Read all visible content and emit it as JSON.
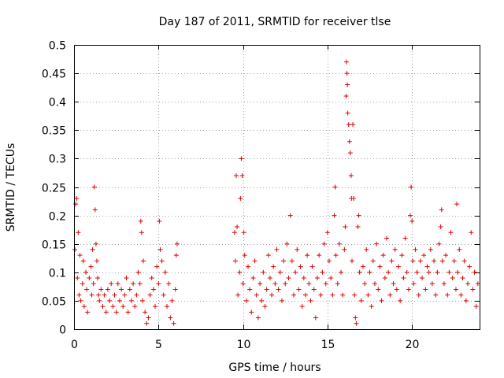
{
  "chart_data": {
    "type": "scatter",
    "title": "Day 187 of 2011, SRMTID for receiver tlse",
    "xlabel": "GPS time / hours",
    "ylabel": "SRMTID / TECUs",
    "xlim": [
      0,
      24
    ],
    "ylim": [
      0,
      0.5
    ],
    "xticks": [
      0,
      5,
      10,
      15,
      20
    ],
    "yticks": [
      0,
      0.05,
      0.1,
      0.15,
      0.2,
      0.25,
      0.3,
      0.35,
      0.4,
      0.45,
      0.5
    ],
    "xtick_labels": [
      "0",
      "5",
      "10",
      "15",
      "20"
    ],
    "ytick_labels": [
      "0",
      "0.05",
      "0.1",
      "0.15",
      "0.2",
      "0.25",
      "0.3",
      "0.35",
      "0.4",
      "0.45",
      "0.5"
    ],
    "grid": true,
    "marker": "+",
    "color": "#e00000",
    "series": [
      {
        "name": "SRMTID",
        "points": [
          [
            0.05,
            0.14
          ],
          [
            0.1,
            0.22
          ],
          [
            0.15,
            0.23
          ],
          [
            0.2,
            0.09
          ],
          [
            0.25,
            0.17
          ],
          [
            0.3,
            0.06
          ],
          [
            0.35,
            0.13
          ],
          [
            0.4,
            0.05
          ],
          [
            0.5,
            0.08
          ],
          [
            0.55,
            0.12
          ],
          [
            0.6,
            0.04
          ],
          [
            0.7,
            0.1
          ],
          [
            0.75,
            0.07
          ],
          [
            0.8,
            0.03
          ],
          [
            0.9,
            0.09
          ],
          [
            1.0,
            0.11
          ],
          [
            1.05,
            0.06
          ],
          [
            1.1,
            0.14
          ],
          [
            1.15,
            0.08
          ],
          [
            1.2,
            0.25
          ],
          [
            1.25,
            0.21
          ],
          [
            1.3,
            0.15
          ],
          [
            1.35,
            0.12
          ],
          [
            1.4,
            0.09
          ],
          [
            1.45,
            0.06
          ],
          [
            1.5,
            0.05
          ],
          [
            1.6,
            0.07
          ],
          [
            1.7,
            0.04
          ],
          [
            1.8,
            0.06
          ],
          [
            1.9,
            0.03
          ],
          [
            2.0,
            0.07
          ],
          [
            2.1,
            0.05
          ],
          [
            2.2,
            0.08
          ],
          [
            2.3,
            0.04
          ],
          [
            2.4,
            0.06
          ],
          [
            2.5,
            0.03
          ],
          [
            2.6,
            0.08
          ],
          [
            2.7,
            0.05
          ],
          [
            2.8,
            0.07
          ],
          [
            2.9,
            0.04
          ],
          [
            3.0,
            0.06
          ],
          [
            3.1,
            0.09
          ],
          [
            3.2,
            0.03
          ],
          [
            3.3,
            0.07
          ],
          [
            3.4,
            0.05
          ],
          [
            3.5,
            0.08
          ],
          [
            3.6,
            0.04
          ],
          [
            3.7,
            0.06
          ],
          [
            3.8,
            0.1
          ],
          [
            3.9,
            0.08
          ],
          [
            3.95,
            0.19
          ],
          [
            4.0,
            0.17
          ],
          [
            4.05,
            0.05
          ],
          [
            4.1,
            0.12
          ],
          [
            4.2,
            0.03
          ],
          [
            4.3,
            0.01
          ],
          [
            4.4,
            0.02
          ],
          [
            4.5,
            0.06
          ],
          [
            4.6,
            0.09
          ],
          [
            4.7,
            0.07
          ],
          [
            4.8,
            0.04
          ],
          [
            4.9,
            0.11
          ],
          [
            5.0,
            0.08
          ],
          [
            5.05,
            0.19
          ],
          [
            5.1,
            0.14
          ],
          [
            5.2,
            0.12
          ],
          [
            5.3,
            0.06
          ],
          [
            5.4,
            0.1
          ],
          [
            5.5,
            0.04
          ],
          [
            5.6,
            0.08
          ],
          [
            5.7,
            0.02
          ],
          [
            5.8,
            0.05
          ],
          [
            5.9,
            0.01
          ],
          [
            6.0,
            0.07
          ],
          [
            6.05,
            0.13
          ],
          [
            6.1,
            0.15
          ],
          [
            9.5,
            0.17
          ],
          [
            9.55,
            0.12
          ],
          [
            9.6,
            0.27
          ],
          [
            9.65,
            0.18
          ],
          [
            9.7,
            0.06
          ],
          [
            9.8,
            0.1
          ],
          [
            9.85,
            0.23
          ],
          [
            9.9,
            0.3
          ],
          [
            9.95,
            0.27
          ],
          [
            10.0,
            0.08
          ],
          [
            10.05,
            0.17
          ],
          [
            10.1,
            0.13
          ],
          [
            10.2,
            0.05
          ],
          [
            10.3,
            0.11
          ],
          [
            10.4,
            0.07
          ],
          [
            10.5,
            0.03
          ],
          [
            10.6,
            0.09
          ],
          [
            10.7,
            0.12
          ],
          [
            10.8,
            0.06
          ],
          [
            10.9,
            0.02
          ],
          [
            11.0,
            0.08
          ],
          [
            11.1,
            0.05
          ],
          [
            11.2,
            0.1
          ],
          [
            11.3,
            0.04
          ],
          [
            11.4,
            0.07
          ],
          [
            11.5,
            0.13
          ],
          [
            11.6,
            0.09
          ],
          [
            11.7,
            0.06
          ],
          [
            11.8,
            0.11
          ],
          [
            11.9,
            0.08
          ],
          [
            12.0,
            0.14
          ],
          [
            12.1,
            0.07
          ],
          [
            12.2,
            0.1
          ],
          [
            12.3,
            0.05
          ],
          [
            12.4,
            0.12
          ],
          [
            12.5,
            0.08
          ],
          [
            12.6,
            0.15
          ],
          [
            12.7,
            0.09
          ],
          [
            12.8,
            0.2
          ],
          [
            12.9,
            0.12
          ],
          [
            13.0,
            0.06
          ],
          [
            13.1,
            0.1
          ],
          [
            13.2,
            0.14
          ],
          [
            13.3,
            0.07
          ],
          [
            13.4,
            0.11
          ],
          [
            13.5,
            0.04
          ],
          [
            13.6,
            0.09
          ],
          [
            13.7,
            0.06
          ],
          [
            13.8,
            0.13
          ],
          [
            13.9,
            0.08
          ],
          [
            14.0,
            0.05
          ],
          [
            14.1,
            0.11
          ],
          [
            14.2,
            0.07
          ],
          [
            14.3,
            0.02
          ],
          [
            14.4,
            0.09
          ],
          [
            14.5,
            0.13
          ],
          [
            14.6,
            0.06
          ],
          [
            14.7,
            0.1
          ],
          [
            14.8,
            0.15
          ],
          [
            14.9,
            0.08
          ],
          [
            15.0,
            0.17
          ],
          [
            15.1,
            0.12
          ],
          [
            15.2,
            0.09
          ],
          [
            15.3,
            0.06
          ],
          [
            15.4,
            0.2
          ],
          [
            15.45,
            0.25
          ],
          [
            15.5,
            0.13
          ],
          [
            15.6,
            0.08
          ],
          [
            15.7,
            0.15
          ],
          [
            15.8,
            0.1
          ],
          [
            15.9,
            0.06
          ],
          [
            16.0,
            0.14
          ],
          [
            16.05,
            0.18
          ],
          [
            16.1,
            0.41
          ],
          [
            16.12,
            0.47
          ],
          [
            16.15,
            0.45
          ],
          [
            16.18,
            0.43
          ],
          [
            16.2,
            0.38
          ],
          [
            16.25,
            0.36
          ],
          [
            16.3,
            0.33
          ],
          [
            16.35,
            0.31
          ],
          [
            16.4,
            0.27
          ],
          [
            16.42,
            0.23
          ],
          [
            16.45,
            0.12
          ],
          [
            16.5,
            0.36
          ],
          [
            16.55,
            0.23
          ],
          [
            16.6,
            0.06
          ],
          [
            16.65,
            0.02
          ],
          [
            16.7,
            0.01
          ],
          [
            16.8,
            0.18
          ],
          [
            16.85,
            0.2
          ],
          [
            16.9,
            0.1
          ],
          [
            17.0,
            0.05
          ],
          [
            17.1,
            0.11
          ],
          [
            17.2,
            0.08
          ],
          [
            17.3,
            0.14
          ],
          [
            17.4,
            0.06
          ],
          [
            17.5,
            0.1
          ],
          [
            17.6,
            0.04
          ],
          [
            17.7,
            0.12
          ],
          [
            17.8,
            0.08
          ],
          [
            17.9,
            0.15
          ],
          [
            18.0,
            0.07
          ],
          [
            18.1,
            0.11
          ],
          [
            18.2,
            0.05
          ],
          [
            18.3,
            0.13
          ],
          [
            18.4,
            0.09
          ],
          [
            18.5,
            0.16
          ],
          [
            18.6,
            0.1
          ],
          [
            18.7,
            0.06
          ],
          [
            18.8,
            0.12
          ],
          [
            18.9,
            0.08
          ],
          [
            19.0,
            0.14
          ],
          [
            19.1,
            0.07
          ],
          [
            19.2,
            0.11
          ],
          [
            19.3,
            0.05
          ],
          [
            19.4,
            0.13
          ],
          [
            19.5,
            0.09
          ],
          [
            19.6,
            0.16
          ],
          [
            19.7,
            0.1
          ],
          [
            19.8,
            0.07
          ],
          [
            19.9,
            0.2
          ],
          [
            19.95,
            0.25
          ],
          [
            20.0,
            0.19
          ],
          [
            20.05,
            0.12
          ],
          [
            20.1,
            0.08
          ],
          [
            20.2,
            0.14
          ],
          [
            20.3,
            0.1
          ],
          [
            20.4,
            0.06
          ],
          [
            20.5,
            0.12
          ],
          [
            20.6,
            0.09
          ],
          [
            20.7,
            0.13
          ],
          [
            20.8,
            0.07
          ],
          [
            20.9,
            0.11
          ],
          [
            21.0,
            0.1
          ],
          [
            21.1,
            0.14
          ],
          [
            21.2,
            0.08
          ],
          [
            21.3,
            0.12
          ],
          [
            21.4,
            0.06
          ],
          [
            21.5,
            0.1
          ],
          [
            21.6,
            0.15
          ],
          [
            21.7,
            0.18
          ],
          [
            21.75,
            0.21
          ],
          [
            21.8,
            0.12
          ],
          [
            21.9,
            0.08
          ],
          [
            22.0,
            0.13
          ],
          [
            22.1,
            0.06
          ],
          [
            22.2,
            0.1
          ],
          [
            22.3,
            0.17
          ],
          [
            22.4,
            0.09
          ],
          [
            22.5,
            0.12
          ],
          [
            22.6,
            0.07
          ],
          [
            22.65,
            0.22
          ],
          [
            22.7,
            0.1
          ],
          [
            22.8,
            0.14
          ],
          [
            22.9,
            0.06
          ],
          [
            23.0,
            0.09
          ],
          [
            23.1,
            0.12
          ],
          [
            23.2,
            0.05
          ],
          [
            23.3,
            0.08
          ],
          [
            23.4,
            0.11
          ],
          [
            23.5,
            0.17
          ],
          [
            23.6,
            0.07
          ],
          [
            23.7,
            0.1
          ],
          [
            23.8,
            0.04
          ],
          [
            23.9,
            0.08
          ]
        ]
      }
    ]
  }
}
